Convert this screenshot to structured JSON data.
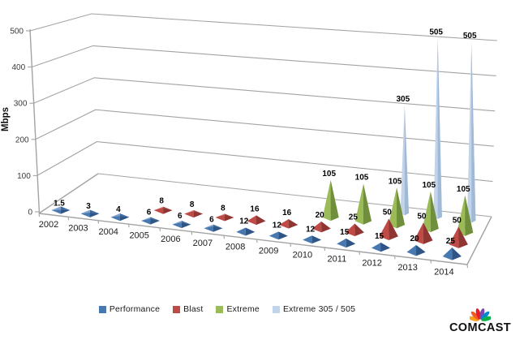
{
  "chart_data": {
    "type": "3d-pyramid-column",
    "title": "",
    "ylabel": "Mbps",
    "ylim": [
      0,
      500
    ],
    "yticks": [
      0,
      100,
      200,
      300,
      400,
      500
    ],
    "grid": true,
    "legend_position": "bottom",
    "categories": [
      "2002",
      "2003",
      "2004",
      "2005",
      "2006",
      "2007",
      "2008",
      "2009",
      "2010",
      "2011",
      "2012",
      "2013",
      "2014"
    ],
    "series": [
      {
        "name": "Performance",
        "face": "#4878B0",
        "dark": "#2E5585",
        "tint": "#7FA3CE",
        "tintDark": "#3E689E",
        "values": [
          1.5,
          3,
          4,
          6,
          6,
          6,
          12,
          12,
          12,
          15,
          15,
          20,
          25
        ]
      },
      {
        "name": "Blast",
        "face": "#BF4B47",
        "dark": "#8F3532",
        "tint": "#D28985",
        "tintDark": "#A84340",
        "values": [
          null,
          null,
          null,
          8,
          8,
          8,
          16,
          16,
          20,
          25,
          50,
          50,
          50
        ]
      },
      {
        "name": "Extreme",
        "face": "#9BBB59",
        "dark": "#6F8F3C",
        "tint": "#B8CF85",
        "tintDark": "#85A74A",
        "values": [
          null,
          null,
          null,
          null,
          null,
          null,
          null,
          null,
          105,
          105,
          105,
          105,
          105
        ]
      },
      {
        "name": "Extreme 305 / 505",
        "face": "#C2D4EA",
        "dark": "#9FB9D6",
        "tint": "#D8E4F2",
        "tintDark": "#B0C6E0",
        "values": [
          null,
          null,
          null,
          null,
          null,
          null,
          null,
          null,
          null,
          null,
          305,
          505,
          505
        ]
      }
    ]
  },
  "axis": {
    "gridline_color": "#A3A3A3",
    "tick_label_color": "#3a3a3a",
    "category_label_color": "#1c1c1c"
  },
  "branding": {
    "logo_text": "COMCAST",
    "peacock_colors": [
      "#F7A11A",
      "#F05A28",
      "#E31E26",
      "#8246AF",
      "#0089CF",
      "#0DB14B"
    ]
  }
}
